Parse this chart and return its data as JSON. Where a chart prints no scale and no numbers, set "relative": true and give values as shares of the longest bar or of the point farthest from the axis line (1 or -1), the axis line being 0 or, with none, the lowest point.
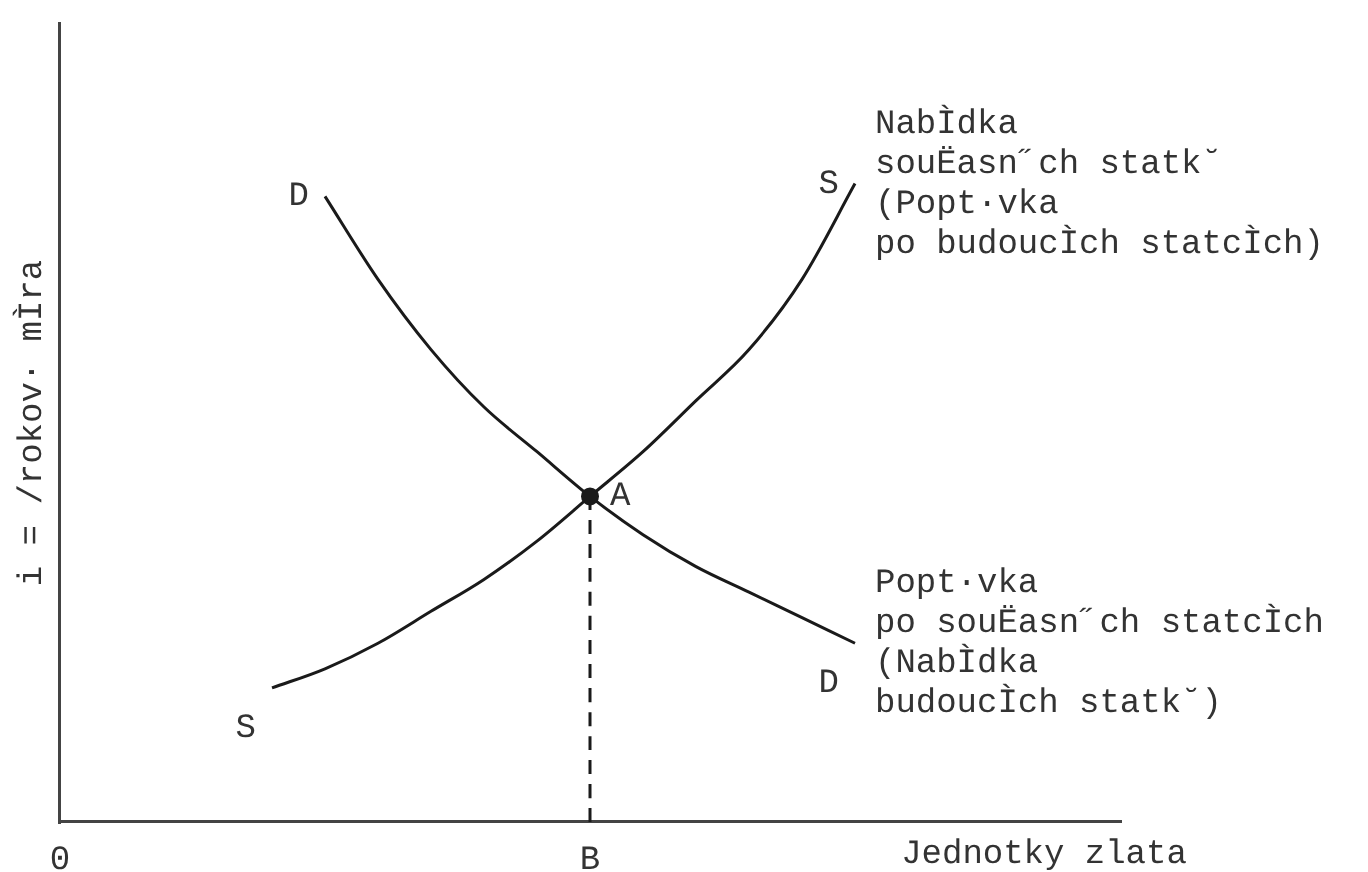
{
  "chart_data": {
    "type": "line",
    "relative": true,
    "xlabel": "Jednotky zlata",
    "ylabel": "i = /rokov· mÌra",
    "categories": [
      "0",
      null,
      null,
      null,
      null,
      null,
      null,
      null,
      null,
      null,
      "B",
      null,
      null,
      null,
      null,
      null,
      null,
      null,
      null,
      null,
      null
    ],
    "grid": false,
    "legend": false,
    "marker": "none",
    "series": [
      {
        "name": "D",
        "color": "#1a1a1a",
        "values": [
          null,
          null,
          null,
          null,
          null,
          0.98,
          0.85,
          0.74,
          0.65,
          0.58,
          0.51,
          0.45,
          0.4,
          0.36,
          0.32,
          0.28,
          null,
          null,
          null,
          null,
          null
        ]
      },
      {
        "name": "S",
        "color": "#1a1a1a",
        "values": [
          null,
          null,
          null,
          null,
          0.21,
          0.24,
          0.28,
          0.33,
          0.38,
          0.44,
          0.51,
          0.58,
          0.66,
          0.74,
          0.85,
          1,
          null,
          null,
          null,
          null,
          null
        ]
      },
      {
        "type": "line",
        "color": "#1a1a1a",
        "line_style": "dashed",
        "x": [
          "B",
          "B"
        ],
        "values": [
          0,
          0.51
        ]
      },
      {
        "type": "scatter",
        "color": "#1a1a1a",
        "marker": "circle",
        "values": [
          null,
          null,
          null,
          null,
          null,
          null,
          null,
          null,
          null,
          null,
          0.51,
          null,
          null,
          null,
          null,
          null,
          null,
          null,
          null,
          null,
          null
        ]
      }
    ],
    "annotations": [
      "NabÌdka\nsouËasn˝ch statk˘\n(Popt·vka\npo budoucÌch statcÌch)",
      "Popt·vka\npo souËasn˝ch statcÌch\n(NabÌdka\nbudoucÌch statk˘)",
      {
        "text": "A",
        "x": "B",
        "y": 0.51
      }
    ]
  }
}
